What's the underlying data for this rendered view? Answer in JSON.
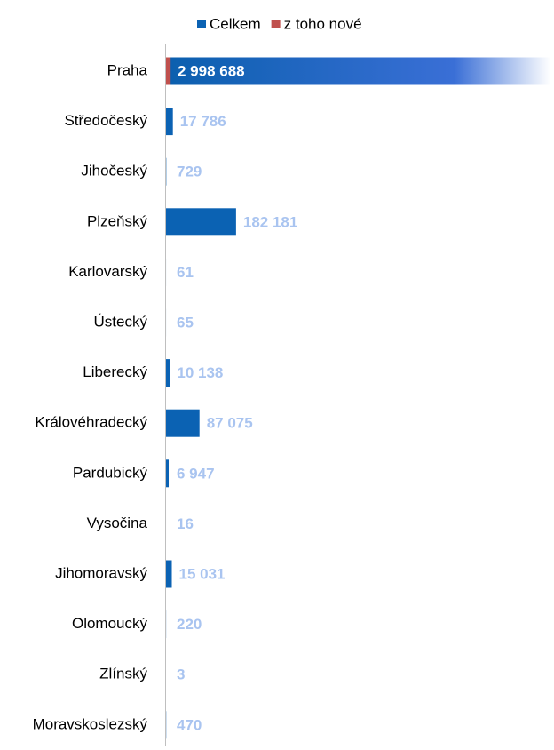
{
  "chart_data": {
    "type": "bar",
    "orientation": "horizontal",
    "categories": [
      "Praha",
      "Středočeský",
      "Jihočeský",
      "Plzeňský",
      "Karlovarský",
      "Ústecký",
      "Liberecký",
      "Královéhradecký",
      "Pardubický",
      "Vysočina",
      "Jihomoravský",
      "Olomoucký",
      "Zlínský",
      "Moravskoslezský"
    ],
    "series": [
      {
        "name": "Celkem",
        "color": "#0b62b3",
        "values": [
          2998688,
          17786,
          729,
          182181,
          61,
          65,
          10138,
          87075,
          6947,
          16,
          15031,
          220,
          3,
          470
        ],
        "value_labels": [
          "2 998 688",
          "17 786",
          "729",
          "182 181",
          "61",
          "65",
          "10 138",
          "87 075",
          "6 947",
          "16",
          "15 031",
          "220",
          "3",
          "470"
        ]
      },
      {
        "name": "z toho nové",
        "color": "#c0504d",
        "values": [
          12000,
          0,
          0,
          0,
          0,
          0,
          0,
          0,
          0,
          0,
          0,
          0,
          0,
          0
        ]
      }
    ],
    "xlim": [
      0,
      1000000
    ],
    "legend": "top"
  }
}
